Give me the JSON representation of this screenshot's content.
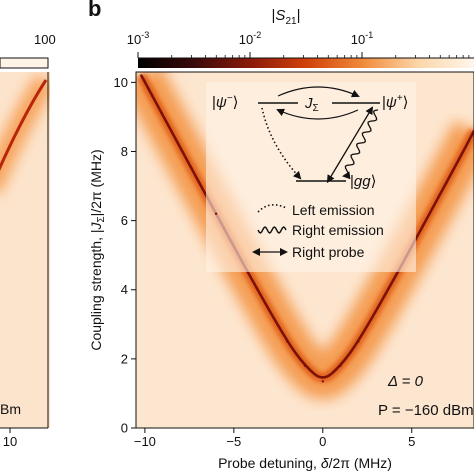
{
  "panel_label": "b",
  "colorbar": {
    "label": "|S21|",
    "scale": "log",
    "range": [
      0.001,
      1
    ],
    "tick_labels": [
      "10-3",
      "10-2",
      "10-1"
    ],
    "colormap": [
      "#000000",
      "#3a0a0a",
      "#8a1a0a",
      "#d0400a",
      "#f08a3a",
      "#fbd6a8",
      "#fff6ec"
    ]
  },
  "left_panel_fragment": {
    "colorbar_tick": "100",
    "x_tick": "10",
    "power_fragment": "Bm"
  },
  "inset": {
    "states": {
      "minus": "|ψ−⟩",
      "plus": "|ψ+⟩",
      "ground": "|gg⟩",
      "coupling": "JΣ"
    },
    "legend": [
      {
        "style": "dotted",
        "label": "Left emission"
      },
      {
        "style": "wavy",
        "label": "Right emission"
      },
      {
        "style": "arrow",
        "label": "Right probe"
      }
    ]
  },
  "annotations": {
    "delta": "Δ = 0",
    "power": "P = −160 dBm"
  },
  "chart_data": {
    "type": "heatmap",
    "title": "",
    "xlabel": "Probe detuning, δ/2π (MHz)",
    "ylabel": "Coupling strength, |JΣ|/2π (MHz)",
    "xlim": [
      -10.5,
      8.5
    ],
    "ylim": [
      0,
      10.3
    ],
    "x_ticks": [
      -10,
      -5,
      0,
      5
    ],
    "x_tick_labels": [
      "−10",
      "−5",
      "0",
      "5"
    ],
    "y_ticks": [
      0,
      2,
      4,
      6,
      8,
      10
    ],
    "y_tick_labels": [
      "0",
      "2",
      "4",
      "6",
      "8",
      "10"
    ],
    "resonance_min": {
      "x": 0,
      "y": 1.35
    },
    "resonance_curve": [
      {
        "x": -10.2,
        "y": 10.2
      },
      {
        "x": -8,
        "y": 8.1
      },
      {
        "x": -6,
        "y": 6.2
      },
      {
        "x": -4,
        "y": 4.3
      },
      {
        "x": -2,
        "y": 2.5
      },
      {
        "x": -1,
        "y": 1.8
      },
      {
        "x": 0,
        "y": 1.35
      },
      {
        "x": 1,
        "y": 1.8
      },
      {
        "x": 2,
        "y": 2.5
      },
      {
        "x": 4,
        "y": 4.3
      },
      {
        "x": 6,
        "y": 6.2
      },
      {
        "x": 8,
        "y": 8.1
      },
      {
        "x": 8.5,
        "y": 8.6
      }
    ]
  }
}
